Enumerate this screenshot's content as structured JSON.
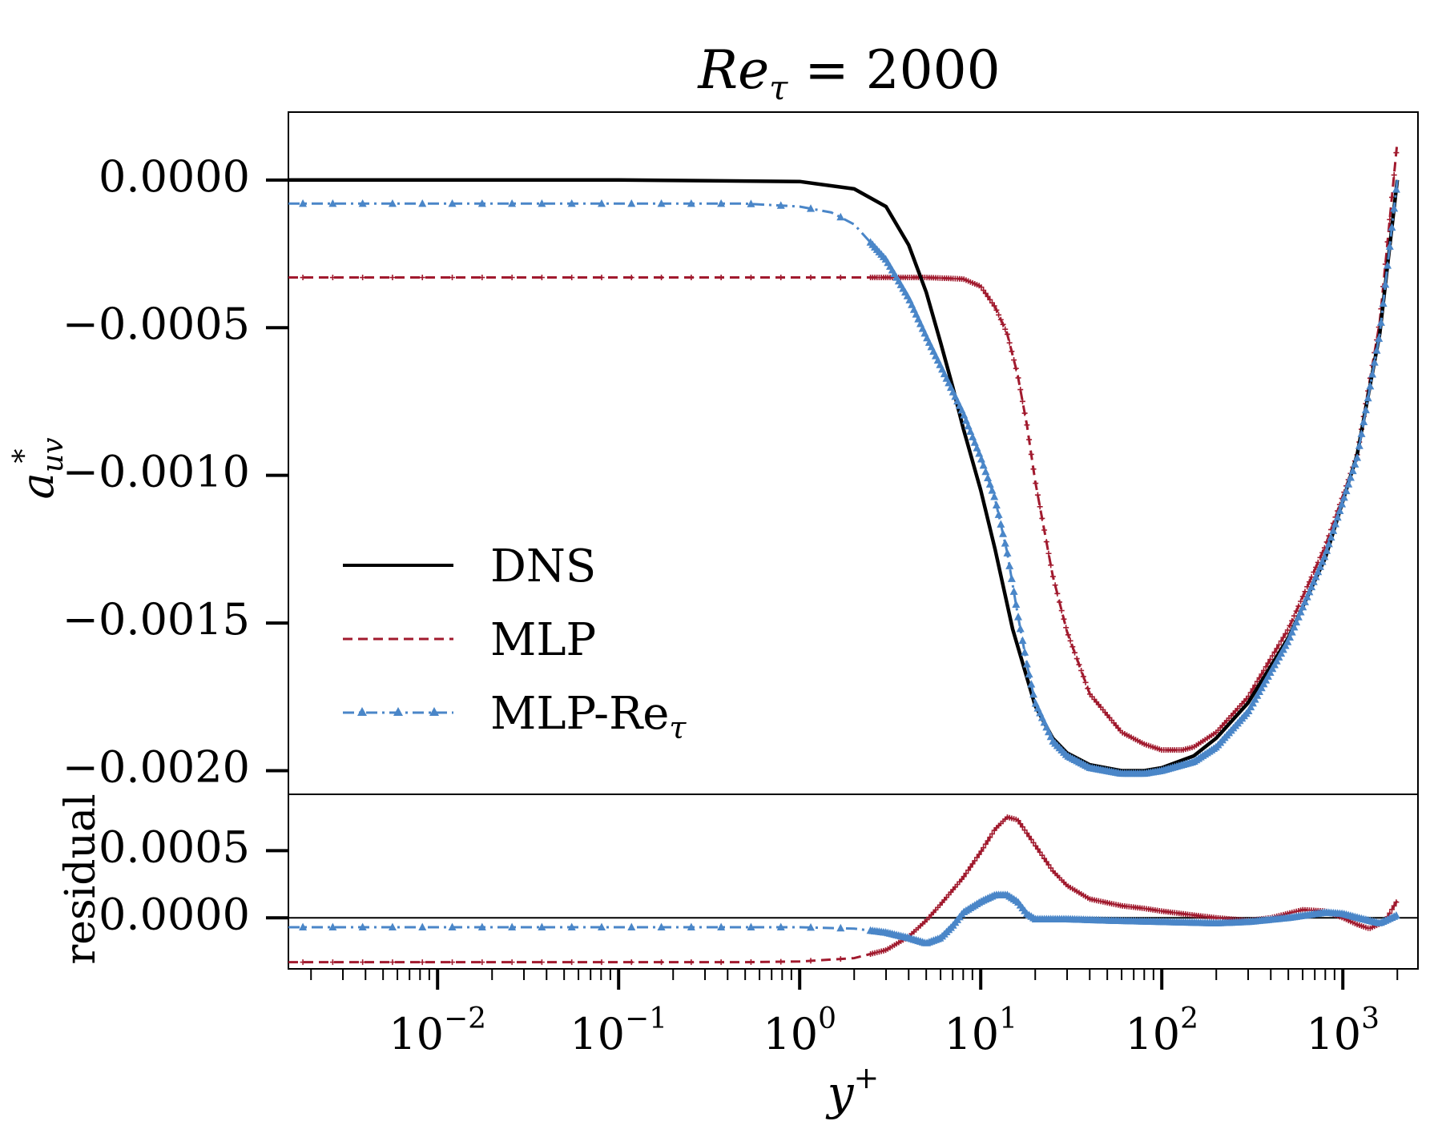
{
  "chart_data": {
    "type": "line",
    "title": {
      "base": "Re",
      "sub": "τ",
      "rest": " = 2000"
    },
    "xlabel": {
      "base": "y",
      "sup": "+"
    },
    "xscale": "log",
    "xlim": [
      0.0015,
      2600
    ],
    "xticks": [
      {
        "value": 0.01,
        "base": "10",
        "exp": "−2"
      },
      {
        "value": 0.1,
        "base": "10",
        "exp": "−1"
      },
      {
        "value": 1,
        "base": "10",
        "exp": "0"
      },
      {
        "value": 10,
        "base": "10",
        "exp": "1"
      },
      {
        "value": 100,
        "base": "10",
        "exp": "2"
      },
      {
        "value": 1000,
        "base": "10",
        "exp": "3"
      }
    ],
    "legend": {
      "placement": "center-left",
      "entries": [
        {
          "key": "DNS",
          "base": "DNS",
          "sub": ""
        },
        {
          "key": "MLP",
          "base": "MLP",
          "sub": ""
        },
        {
          "key": "MLP-Re",
          "base": "MLP-Re",
          "sub": "τ"
        }
      ]
    },
    "colors": {
      "DNS": "#000000",
      "MLP": "#a11a2e",
      "MLP-Re": "#4a86c8"
    },
    "top_panel": {
      "ylabel": {
        "base": "a",
        "sub": "uv",
        "sup": "*"
      },
      "ylim": [
        -0.00208,
        0.00023
      ],
      "yticks": [
        {
          "value": 0.0,
          "label": "0.0000"
        },
        {
          "value": -0.0005,
          "label": "−0.0005"
        },
        {
          "value": -0.001,
          "label": "−0.0010"
        },
        {
          "value": -0.0015,
          "label": "−0.0015"
        },
        {
          "value": -0.002,
          "label": "−0.0020"
        }
      ],
      "series": [
        {
          "name": "DNS",
          "points": [
            [
              0.0015,
              0.0
            ],
            [
              0.1,
              0.0
            ],
            [
              1.0,
              -5e-06
            ],
            [
              2.0,
              -3e-05
            ],
            [
              3.0,
              -9e-05
            ],
            [
              4.0,
              -0.00022
            ],
            [
              5.0,
              -0.00038
            ],
            [
              6.0,
              -0.00055
            ],
            [
              7.0,
              -0.0007
            ],
            [
              8.0,
              -0.00084
            ],
            [
              10.0,
              -0.00105
            ],
            [
              12.0,
              -0.00125
            ],
            [
              15.0,
              -0.00152
            ],
            [
              20.0,
              -0.00178
            ],
            [
              25.0,
              -0.00189
            ],
            [
              30.0,
              -0.00194
            ],
            [
              40.0,
              -0.00198
            ],
            [
              60.0,
              -0.002
            ],
            [
              80.0,
              -0.002
            ],
            [
              100.0,
              -0.00199
            ],
            [
              150.0,
              -0.00195
            ],
            [
              200.0,
              -0.00189
            ],
            [
              300.0,
              -0.00177
            ],
            [
              500.0,
              -0.00155
            ],
            [
              800.0,
              -0.00128
            ],
            [
              1200.0,
              -0.00093
            ],
            [
              1600.0,
              -0.00052
            ],
            [
              2000.0,
              0.0
            ]
          ]
        },
        {
          "name": "MLP",
          "points": [
            [
              0.0015,
              -0.00033
            ],
            [
              1.0,
              -0.00033
            ],
            [
              5.0,
              -0.00033
            ],
            [
              8.0,
              -0.000335
            ],
            [
              10.0,
              -0.00036
            ],
            [
              12.0,
              -0.00043
            ],
            [
              14.0,
              -0.00052
            ],
            [
              16.0,
              -0.00066
            ],
            [
              18.0,
              -0.00083
            ],
            [
              20.0,
              -0.00102
            ],
            [
              25.0,
              -0.00134
            ],
            [
              30.0,
              -0.00153
            ],
            [
              40.0,
              -0.00174
            ],
            [
              60.0,
              -0.00187
            ],
            [
              80.0,
              -0.00191
            ],
            [
              100.0,
              -0.00193
            ],
            [
              130.0,
              -0.00193
            ],
            [
              150.0,
              -0.00192
            ],
            [
              200.0,
              -0.00187
            ],
            [
              300.0,
              -0.00175
            ],
            [
              500.0,
              -0.00152
            ],
            [
              800.0,
              -0.00124
            ],
            [
              1200.0,
              -0.00093
            ],
            [
              1600.0,
              -0.00048
            ],
            [
              2000.0,
              0.00013
            ]
          ]
        },
        {
          "name": "MLP-Re",
          "points": [
            [
              0.0015,
              -8e-05
            ],
            [
              0.5,
              -8e-05
            ],
            [
              1.0,
              -9e-05
            ],
            [
              1.5,
              -0.00011
            ],
            [
              2.0,
              -0.00015
            ],
            [
              3.0,
              -0.00027
            ],
            [
              4.0,
              -0.0004
            ],
            [
              5.0,
              -0.00053
            ],
            [
              6.0,
              -0.00063
            ],
            [
              8.0,
              -0.00079
            ],
            [
              10.0,
              -0.00094
            ],
            [
              12.0,
              -0.00108
            ],
            [
              14.0,
              -0.00126
            ],
            [
              16.0,
              -0.00147
            ],
            [
              18.0,
              -0.00164
            ],
            [
              20.0,
              -0.00177
            ],
            [
              25.0,
              -0.0019
            ],
            [
              30.0,
              -0.00195
            ],
            [
              40.0,
              -0.00199
            ],
            [
              60.0,
              -0.00201
            ],
            [
              80.0,
              -0.00201
            ],
            [
              100.0,
              -0.002
            ],
            [
              150.0,
              -0.00197
            ],
            [
              200.0,
              -0.00192
            ],
            [
              300.0,
              -0.0018
            ],
            [
              500.0,
              -0.00156
            ],
            [
              800.0,
              -0.00127
            ],
            [
              1200.0,
              -0.00094
            ],
            [
              1600.0,
              -0.00052
            ],
            [
              2000.0,
              0.0
            ]
          ]
        }
      ]
    },
    "bottom_panel": {
      "ylabel": "residual",
      "ylim": [
        -0.00038,
        0.00092
      ],
      "reference_line": 0.0,
      "yticks": [
        {
          "value": 0.0005,
          "label": "0.0005"
        },
        {
          "value": 0.0,
          "label": "0.0000"
        }
      ],
      "series": [
        {
          "name": "MLP",
          "points": [
            [
              0.0015,
              -0.00033
            ],
            [
              0.5,
              -0.00033
            ],
            [
              1.0,
              -0.000325
            ],
            [
              2.0,
              -0.0003
            ],
            [
              3.0,
              -0.00024
            ],
            [
              4.0,
              -0.00014
            ],
            [
              5.0,
              -2e-05
            ],
            [
              6.0,
              0.0001
            ],
            [
              8.0,
              0.0003
            ],
            [
              10.0,
              0.00049
            ],
            [
              12.0,
              0.00066
            ],
            [
              14.0,
              0.00075
            ],
            [
              16.0,
              0.00073
            ],
            [
              18.0,
              0.00063
            ],
            [
              20.0,
              0.00054
            ],
            [
              25.0,
              0.00035
            ],
            [
              30.0,
              0.00024
            ],
            [
              40.0,
              0.00014
            ],
            [
              60.0,
              9e-05
            ],
            [
              80.0,
              7e-05
            ],
            [
              100.0,
              5e-05
            ],
            [
              150.0,
              2e-05
            ],
            [
              200.0,
              0.0
            ],
            [
              300.0,
              -2e-05
            ],
            [
              400.0,
              0.0
            ],
            [
              600.0,
              6e-05
            ],
            [
              800.0,
              5e-05
            ],
            [
              1000.0,
              0.0
            ],
            [
              1200.0,
              -5e-05
            ],
            [
              1400.0,
              -8e-05
            ],
            [
              1700.0,
              -3e-05
            ],
            [
              2000.0,
              0.00013
            ]
          ]
        },
        {
          "name": "MLP-Re",
          "points": [
            [
              0.0015,
              -7e-05
            ],
            [
              1.0,
              -7e-05
            ],
            [
              2.0,
              -8e-05
            ],
            [
              3.0,
              -0.00011
            ],
            [
              4.0,
              -0.00015
            ],
            [
              5.0,
              -0.00019
            ],
            [
              6.0,
              -0.00015
            ],
            [
              7.0,
              -6e-05
            ],
            [
              8.0,
              4e-05
            ],
            [
              10.0,
              0.00012
            ],
            [
              12.0,
              0.00017
            ],
            [
              14.0,
              0.00017
            ],
            [
              16.0,
              0.00012
            ],
            [
              18.0,
              3e-05
            ],
            [
              20.0,
              -1e-05
            ],
            [
              30.0,
              -1e-05
            ],
            [
              50.0,
              -2e-05
            ],
            [
              100.0,
              -3e-05
            ],
            [
              200.0,
              -4e-05
            ],
            [
              300.0,
              -3e-05
            ],
            [
              500.0,
              0.0
            ],
            [
              800.0,
              4e-05
            ],
            [
              1000.0,
              3e-05
            ],
            [
              1300.0,
              -1e-05
            ],
            [
              1600.0,
              -4e-05
            ],
            [
              2000.0,
              2e-05
            ]
          ]
        }
      ]
    }
  }
}
